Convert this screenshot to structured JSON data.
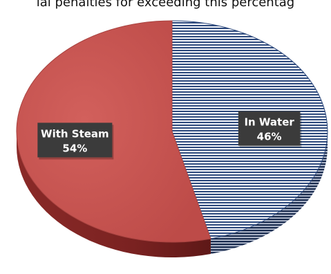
{
  "caption": {
    "text": "ial penalties for exceeding this percentag"
  },
  "chart_data": {
    "type": "pie",
    "title": "",
    "style": "3d-pie",
    "slices": [
      {
        "label": "In Water",
        "value": 46,
        "value_label": "46%",
        "color": "#2e4a7d",
        "fill": "horizontal-stripes"
      },
      {
        "label": "With Steam",
        "value": 54,
        "value_label": "54%",
        "color": "#c0504d",
        "fill": "solid"
      }
    ],
    "data_label_style": "dark boxes with white bold text",
    "legend": "none"
  }
}
